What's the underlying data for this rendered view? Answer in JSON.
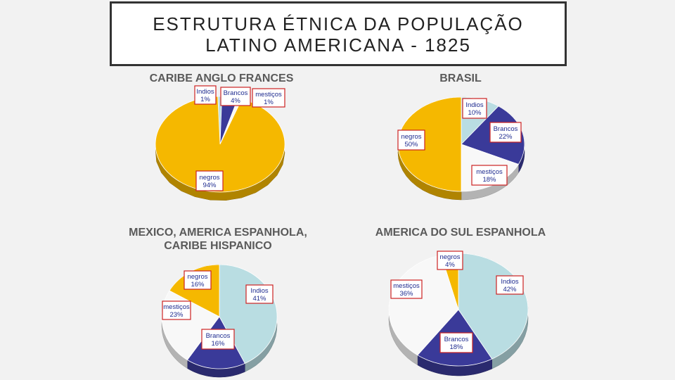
{
  "slide": {
    "title_line1": "ESTRUTURA ÉTNICA DA POPULAÇÃO",
    "title_line2": "LATINO AMERICANA - 1825"
  },
  "colors": {
    "negros": "#f5b800",
    "indios": "#b9dde2",
    "brancos": "#3a3a99",
    "mesticos": "#f8f8f8"
  },
  "chart_data": [
    {
      "type": "pie",
      "title": "CARIBE ANGLO FRANCES",
      "slices": [
        {
          "key": "indios",
          "name": "Indios",
          "value": 1,
          "label": "1%"
        },
        {
          "key": "brancos",
          "name": "Brancos",
          "value": 4,
          "label": "4%"
        },
        {
          "key": "mesticos",
          "name": "mestiços",
          "value": 1,
          "label": "1%"
        },
        {
          "key": "negros",
          "name": "negros",
          "value": 94,
          "label": "94%"
        }
      ]
    },
    {
      "type": "pie",
      "title": "BRASIL",
      "slices": [
        {
          "key": "indios",
          "name": "Indios",
          "value": 10,
          "label": "10%"
        },
        {
          "key": "brancos",
          "name": "Brancos",
          "value": 22,
          "label": "22%"
        },
        {
          "key": "mesticos",
          "name": "mestiços",
          "value": 18,
          "label": "18%"
        },
        {
          "key": "negros",
          "name": "negros",
          "value": 50,
          "label": "50%"
        }
      ]
    },
    {
      "type": "pie",
      "title": "MEXICO, AMERICA ESPANHOLA, CARIBE HISPANICO",
      "title_lines": [
        "MEXICO, AMERICA ESPANHOLA,",
        "CARIBE HISPANICO"
      ],
      "slices": [
        {
          "key": "indios",
          "name": "Indios",
          "value": 41,
          "label": "41%"
        },
        {
          "key": "brancos",
          "name": "Brancos",
          "value": 16,
          "label": "16%"
        },
        {
          "key": "mesticos",
          "name": "mestiços",
          "value": 23,
          "label": "23%"
        },
        {
          "key": "negros",
          "name": "negros",
          "value": 16,
          "label": "16%"
        }
      ]
    },
    {
      "type": "pie",
      "title": "AMERICA DO SUL ESPANHOLA",
      "slices": [
        {
          "key": "indios",
          "name": "Indios",
          "value": 42,
          "label": "42%"
        },
        {
          "key": "brancos",
          "name": "Brancos",
          "value": 18,
          "label": "18%"
        },
        {
          "key": "mesticos",
          "name": "mestiços",
          "value": 36,
          "label": "36%"
        },
        {
          "key": "negros",
          "name": "negros",
          "value": 4,
          "label": "4%"
        }
      ]
    }
  ]
}
